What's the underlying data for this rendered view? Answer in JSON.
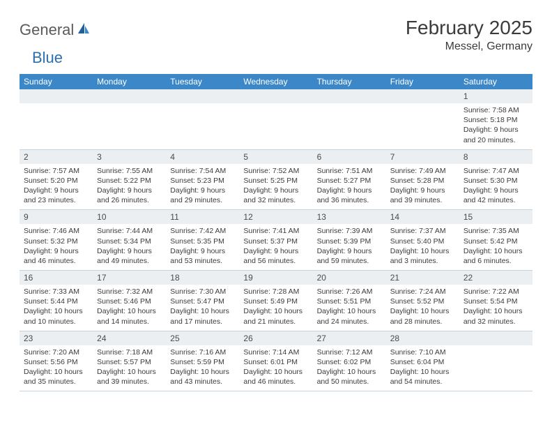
{
  "brand": {
    "part1": "General",
    "part2": "Blue"
  },
  "title": "February 2025",
  "location": "Messel, Germany",
  "colors": {
    "header_bg": "#3b87c8",
    "header_text": "#ffffff",
    "daynum_bg": "#eceff1",
    "text": "#3b3b3b",
    "rule": "#c7d3dd",
    "brand_gray": "#5a5a5a",
    "brand_blue": "#2b6fb0"
  },
  "weekdays": [
    "Sunday",
    "Monday",
    "Tuesday",
    "Wednesday",
    "Thursday",
    "Friday",
    "Saturday"
  ],
  "weeks": [
    [
      null,
      null,
      null,
      null,
      null,
      null,
      {
        "n": "1",
        "sunrise": "Sunrise: 7:58 AM",
        "sunset": "Sunset: 5:18 PM",
        "daylight": "Daylight: 9 hours and 20 minutes."
      }
    ],
    [
      {
        "n": "2",
        "sunrise": "Sunrise: 7:57 AM",
        "sunset": "Sunset: 5:20 PM",
        "daylight": "Daylight: 9 hours and 23 minutes."
      },
      {
        "n": "3",
        "sunrise": "Sunrise: 7:55 AM",
        "sunset": "Sunset: 5:22 PM",
        "daylight": "Daylight: 9 hours and 26 minutes."
      },
      {
        "n": "4",
        "sunrise": "Sunrise: 7:54 AM",
        "sunset": "Sunset: 5:23 PM",
        "daylight": "Daylight: 9 hours and 29 minutes."
      },
      {
        "n": "5",
        "sunrise": "Sunrise: 7:52 AM",
        "sunset": "Sunset: 5:25 PM",
        "daylight": "Daylight: 9 hours and 32 minutes."
      },
      {
        "n": "6",
        "sunrise": "Sunrise: 7:51 AM",
        "sunset": "Sunset: 5:27 PM",
        "daylight": "Daylight: 9 hours and 36 minutes."
      },
      {
        "n": "7",
        "sunrise": "Sunrise: 7:49 AM",
        "sunset": "Sunset: 5:28 PM",
        "daylight": "Daylight: 9 hours and 39 minutes."
      },
      {
        "n": "8",
        "sunrise": "Sunrise: 7:47 AM",
        "sunset": "Sunset: 5:30 PM",
        "daylight": "Daylight: 9 hours and 42 minutes."
      }
    ],
    [
      {
        "n": "9",
        "sunrise": "Sunrise: 7:46 AM",
        "sunset": "Sunset: 5:32 PM",
        "daylight": "Daylight: 9 hours and 46 minutes."
      },
      {
        "n": "10",
        "sunrise": "Sunrise: 7:44 AM",
        "sunset": "Sunset: 5:34 PM",
        "daylight": "Daylight: 9 hours and 49 minutes."
      },
      {
        "n": "11",
        "sunrise": "Sunrise: 7:42 AM",
        "sunset": "Sunset: 5:35 PM",
        "daylight": "Daylight: 9 hours and 53 minutes."
      },
      {
        "n": "12",
        "sunrise": "Sunrise: 7:41 AM",
        "sunset": "Sunset: 5:37 PM",
        "daylight": "Daylight: 9 hours and 56 minutes."
      },
      {
        "n": "13",
        "sunrise": "Sunrise: 7:39 AM",
        "sunset": "Sunset: 5:39 PM",
        "daylight": "Daylight: 9 hours and 59 minutes."
      },
      {
        "n": "14",
        "sunrise": "Sunrise: 7:37 AM",
        "sunset": "Sunset: 5:40 PM",
        "daylight": "Daylight: 10 hours and 3 minutes."
      },
      {
        "n": "15",
        "sunrise": "Sunrise: 7:35 AM",
        "sunset": "Sunset: 5:42 PM",
        "daylight": "Daylight: 10 hours and 6 minutes."
      }
    ],
    [
      {
        "n": "16",
        "sunrise": "Sunrise: 7:33 AM",
        "sunset": "Sunset: 5:44 PM",
        "daylight": "Daylight: 10 hours and 10 minutes."
      },
      {
        "n": "17",
        "sunrise": "Sunrise: 7:32 AM",
        "sunset": "Sunset: 5:46 PM",
        "daylight": "Daylight: 10 hours and 14 minutes."
      },
      {
        "n": "18",
        "sunrise": "Sunrise: 7:30 AM",
        "sunset": "Sunset: 5:47 PM",
        "daylight": "Daylight: 10 hours and 17 minutes."
      },
      {
        "n": "19",
        "sunrise": "Sunrise: 7:28 AM",
        "sunset": "Sunset: 5:49 PM",
        "daylight": "Daylight: 10 hours and 21 minutes."
      },
      {
        "n": "20",
        "sunrise": "Sunrise: 7:26 AM",
        "sunset": "Sunset: 5:51 PM",
        "daylight": "Daylight: 10 hours and 24 minutes."
      },
      {
        "n": "21",
        "sunrise": "Sunrise: 7:24 AM",
        "sunset": "Sunset: 5:52 PM",
        "daylight": "Daylight: 10 hours and 28 minutes."
      },
      {
        "n": "22",
        "sunrise": "Sunrise: 7:22 AM",
        "sunset": "Sunset: 5:54 PM",
        "daylight": "Daylight: 10 hours and 32 minutes."
      }
    ],
    [
      {
        "n": "23",
        "sunrise": "Sunrise: 7:20 AM",
        "sunset": "Sunset: 5:56 PM",
        "daylight": "Daylight: 10 hours and 35 minutes."
      },
      {
        "n": "24",
        "sunrise": "Sunrise: 7:18 AM",
        "sunset": "Sunset: 5:57 PM",
        "daylight": "Daylight: 10 hours and 39 minutes."
      },
      {
        "n": "25",
        "sunrise": "Sunrise: 7:16 AM",
        "sunset": "Sunset: 5:59 PM",
        "daylight": "Daylight: 10 hours and 43 minutes."
      },
      {
        "n": "26",
        "sunrise": "Sunrise: 7:14 AM",
        "sunset": "Sunset: 6:01 PM",
        "daylight": "Daylight: 10 hours and 46 minutes."
      },
      {
        "n": "27",
        "sunrise": "Sunrise: 7:12 AM",
        "sunset": "Sunset: 6:02 PM",
        "daylight": "Daylight: 10 hours and 50 minutes."
      },
      {
        "n": "28",
        "sunrise": "Sunrise: 7:10 AM",
        "sunset": "Sunset: 6:04 PM",
        "daylight": "Daylight: 10 hours and 54 minutes."
      },
      null
    ]
  ]
}
